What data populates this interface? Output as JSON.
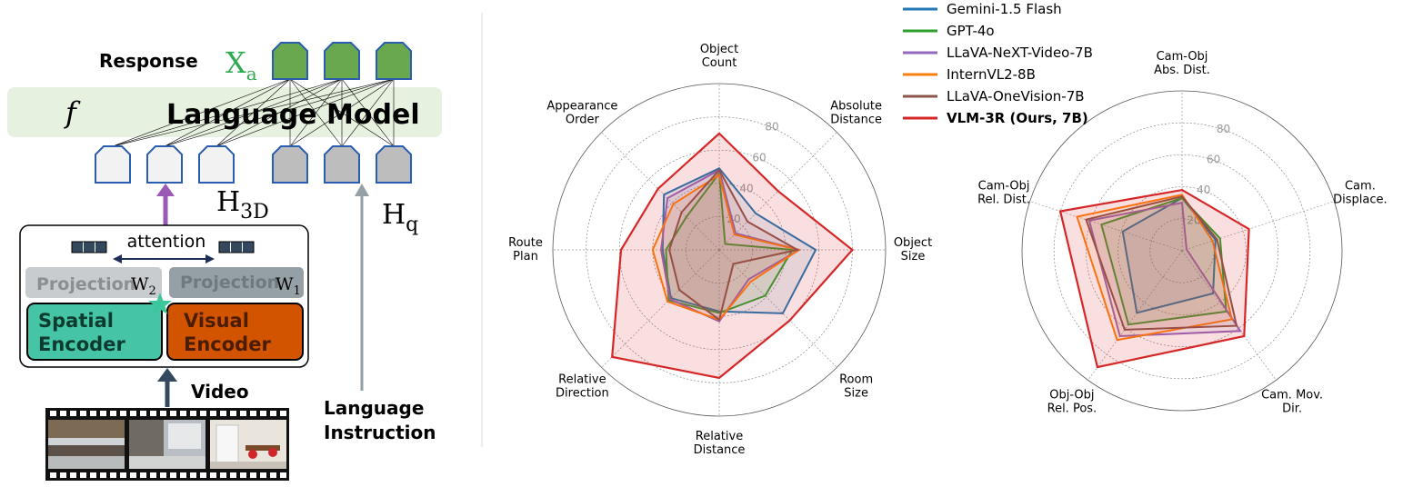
{
  "diagram": {
    "response_label": "Response",
    "xa_main": "X",
    "xa_sub": "a",
    "f_label": "f",
    "lm_label": "Language Model",
    "h3d_main": "H",
    "h3d_sub": "3D",
    "hq_main": "H",
    "hq_sub": "q",
    "attention_label": "attention",
    "projection_left": "Projection",
    "projection_right": "Projection",
    "w2_main": "W",
    "w2_sub": "2",
    "w1_main": "W",
    "w1_sub": "1",
    "spatial_line1": "Spatial",
    "spatial_line2": "Encoder",
    "visual_line1": "Visual",
    "visual_line2": "Encoder",
    "video_label": "Video",
    "lang_line1": "Language",
    "lang_line2": "Instruction",
    "colors": {
      "response_token": "#6aa84f",
      "lm_bg": "#e6f1df",
      "spatial": "#45c4a6",
      "visual": "#d35400",
      "projection_left": "#c9cccf",
      "projection_right": "#95a0a6",
      "query_token": "#bdbdbd",
      "visual_token": "#f2f2f2",
      "token_border": "#2a5db0",
      "attention_arrow": "#1f2f5a",
      "h3d_arrow": "#9b59b6",
      "video_arrow": "#34495e",
      "star": "#3cc79a"
    }
  },
  "legend": [
    {
      "name": "Gemini-1.5 Flash",
      "color": "#1f77b4",
      "bold": false
    },
    {
      "name": "GPT-4o",
      "color": "#2ca02c",
      "bold": false
    },
    {
      "name": "LLaVA-NeXT-Video-7B",
      "color": "#9467bd",
      "bold": false
    },
    {
      "name": "InternVL2-8B",
      "color": "#ff7f0e",
      "bold": false
    },
    {
      "name": "LLaVA-OneVision-7B",
      "color": "#8c564b",
      "bold": false
    },
    {
      "name": "VLM-3R (Ours, 7B)",
      "color": "#d62728",
      "bold": true
    }
  ],
  "chart_data": [
    {
      "type": "radar",
      "axes": [
        {
          "line1": "Object",
          "line2": "Count"
        },
        {
          "line1": "Absolute",
          "line2": "Distance"
        },
        {
          "line1": "Object",
          "line2": "Size"
        },
        {
          "line1": "Room",
          "line2": "Size"
        },
        {
          "line1": "Relative",
          "line2": "Distance"
        },
        {
          "line1": "Relative",
          "line2": "Direction"
        },
        {
          "line1": "Route",
          "line2": "Plan"
        },
        {
          "line1": "Appearance",
          "line2": "Order"
        }
      ],
      "rmax": 100,
      "ticks": [
        "20",
        "40",
        "60",
        "80"
      ],
      "tick_values": [
        20,
        40,
        60,
        80
      ],
      "series": [
        {
          "name": "Gemini-1.5 Flash",
          "color": "#1f77b4",
          "values": [
            49,
            31,
            58,
            54,
            37,
            41,
            34,
            47
          ]
        },
        {
          "name": "GPT-4o",
          "color": "#2ca02c",
          "values": [
            46,
            5,
            44,
            39,
            38,
            43,
            32,
            28
          ]
        },
        {
          "name": "LLaVA-NeXT-Video-7B",
          "color": "#9467bd",
          "values": [
            48,
            14,
            48,
            25,
            43,
            42,
            35,
            44
          ]
        },
        {
          "name": "InternVL2-8B",
          "color": "#ff7f0e",
          "values": [
            45,
            13,
            48,
            27,
            42,
            44,
            40,
            39
          ]
        },
        {
          "name": "LLaVA-OneVision-7B",
          "color": "#8c564b",
          "values": [
            48,
            24,
            47,
            12,
            42,
            34,
            30,
            32
          ]
        },
        {
          "name": "VLM-3R (Ours, 7B)",
          "color": "#d62728",
          "values": [
            70,
            50,
            80,
            60,
            77,
            91,
            59,
            52
          ]
        }
      ]
    },
    {
      "type": "radar",
      "axes": [
        {
          "line1": "Cam-Obj",
          "line2": "Abs. Dist."
        },
        {
          "line1": "Cam.",
          "line2": "Displace."
        },
        {
          "line1": "Cam. Mov.",
          "line2": "Dir."
        },
        {
          "line1": "Obj-Obj",
          "line2": "Rel. Pos."
        },
        {
          "line1": "Cam-Obj",
          "line2": "Rel. Dist."
        }
      ],
      "rmax": 100,
      "ticks": [
        "20",
        "40",
        "60",
        "80"
      ],
      "tick_values": [
        20,
        40,
        60,
        80
      ],
      "series": [
        {
          "name": "Gemini-1.5 Flash",
          "color": "#1f77b4",
          "values": [
            33,
            22,
            33,
            48,
            39
          ]
        },
        {
          "name": "GPT-4o",
          "color": "#2ca02c",
          "values": [
            33,
            25,
            47,
            57,
            53
          ]
        },
        {
          "name": "LLaVA-NeXT-Video-7B",
          "color": "#9467bd",
          "values": [
            30,
            3,
            62,
            66,
            61
          ]
        },
        {
          "name": "InternVL2-8B",
          "color": "#ff7f0e",
          "values": [
            35,
            20,
            53,
            69,
            69
          ]
        },
        {
          "name": "LLaVA-OneVision-7B",
          "color": "#8c564b",
          "values": [
            34,
            23,
            58,
            61,
            63
          ]
        },
        {
          "name": "VLM-3R (Ours, 7B)",
          "color": "#d62728",
          "values": [
            38,
            44,
            66,
            90,
            80
          ]
        }
      ]
    }
  ]
}
